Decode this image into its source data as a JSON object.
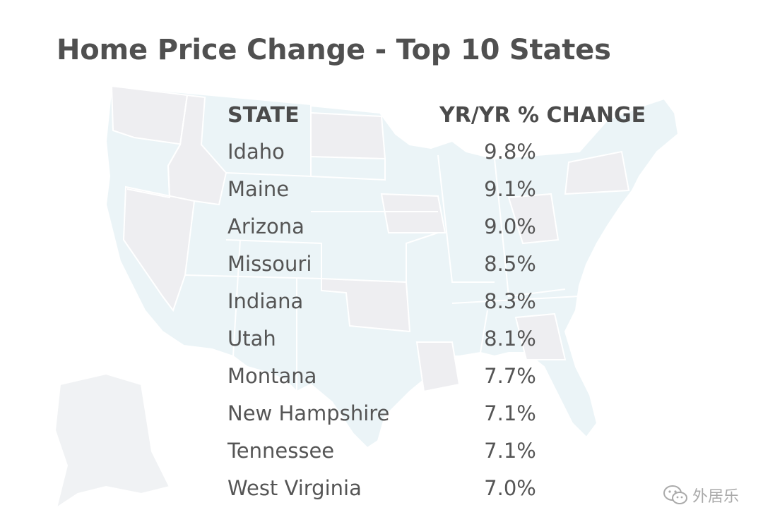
{
  "chart_data": {
    "type": "table",
    "title": "Home Price Change - Top 10 States",
    "columns": [
      "STATE",
      "YR/YR % CHANGE"
    ],
    "rows": [
      {
        "state": "Idaho",
        "change": "9.8%"
      },
      {
        "state": "Maine",
        "change": "9.1%"
      },
      {
        "state": "Arizona",
        "change": "9.0%"
      },
      {
        "state": "Missouri",
        "change": "8.5%"
      },
      {
        "state": "Indiana",
        "change": "8.3%"
      },
      {
        "state": "Utah",
        "change": "8.1%"
      },
      {
        "state": "Montana",
        "change": "7.7%"
      },
      {
        "state": "New Hampshire",
        "change": "7.1%"
      },
      {
        "state": "Tennessee",
        "change": "7.1%"
      },
      {
        "state": "West Virginia",
        "change": "7.0%"
      }
    ],
    "values": [
      9.8,
      9.1,
      9.0,
      8.5,
      8.3,
      8.1,
      7.7,
      7.1,
      7.1,
      7.0
    ]
  },
  "watermark": {
    "text": "外居乐",
    "icon": "wechat-icon"
  },
  "colors": {
    "map_light_blue": "#e8f3f6",
    "map_grey": "#ececef",
    "title": "#505050"
  }
}
